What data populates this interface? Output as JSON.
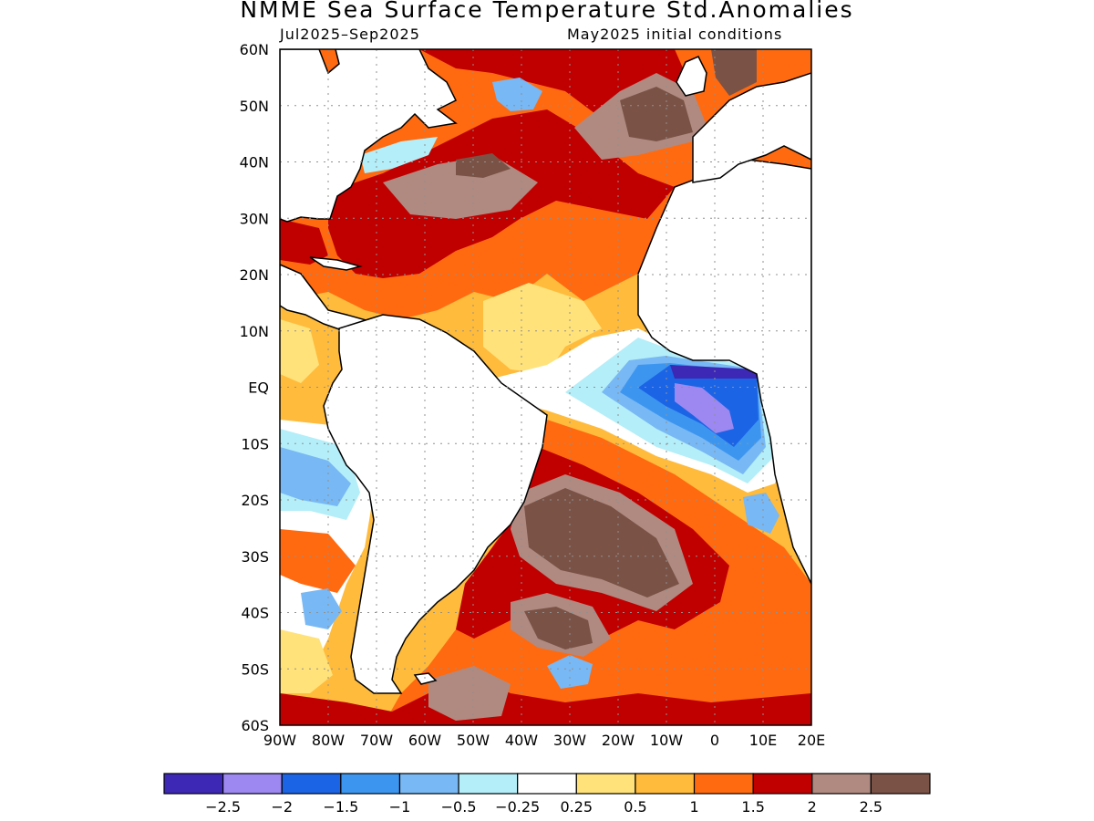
{
  "title": "NMME Sea Surface Temperature Std.Anomalies",
  "period": "Jul2025–Sep2025",
  "initial_conditions": "May2025 initial conditions",
  "axes": {
    "lat_labels": [
      "60N",
      "50N",
      "40N",
      "30N",
      "20N",
      "10N",
      "EQ",
      "10S",
      "20S",
      "30S",
      "40S",
      "50S",
      "60S"
    ],
    "lon_labels": [
      "90W",
      "80W",
      "70W",
      "60W",
      "50W",
      "40W",
      "30W",
      "20W",
      "10W",
      "0",
      "10E",
      "20E"
    ]
  },
  "colorbar": {
    "colors": [
      "#3c28b4",
      "#9c88f0",
      "#1c64e6",
      "#3c96f0",
      "#78b8f4",
      "#b4eef8",
      "#ffffff",
      "#ffe27a",
      "#ffbb3c",
      "#ff6a10",
      "#c00000",
      "#b08a80",
      "#7a5246"
    ],
    "tick_labels": [
      "−2.5",
      "−2",
      "−1.5",
      "−1",
      "−0.5",
      "−0.25",
      "0.25",
      "0.5",
      "1",
      "1.5",
      "2",
      "2.5"
    ]
  }
}
